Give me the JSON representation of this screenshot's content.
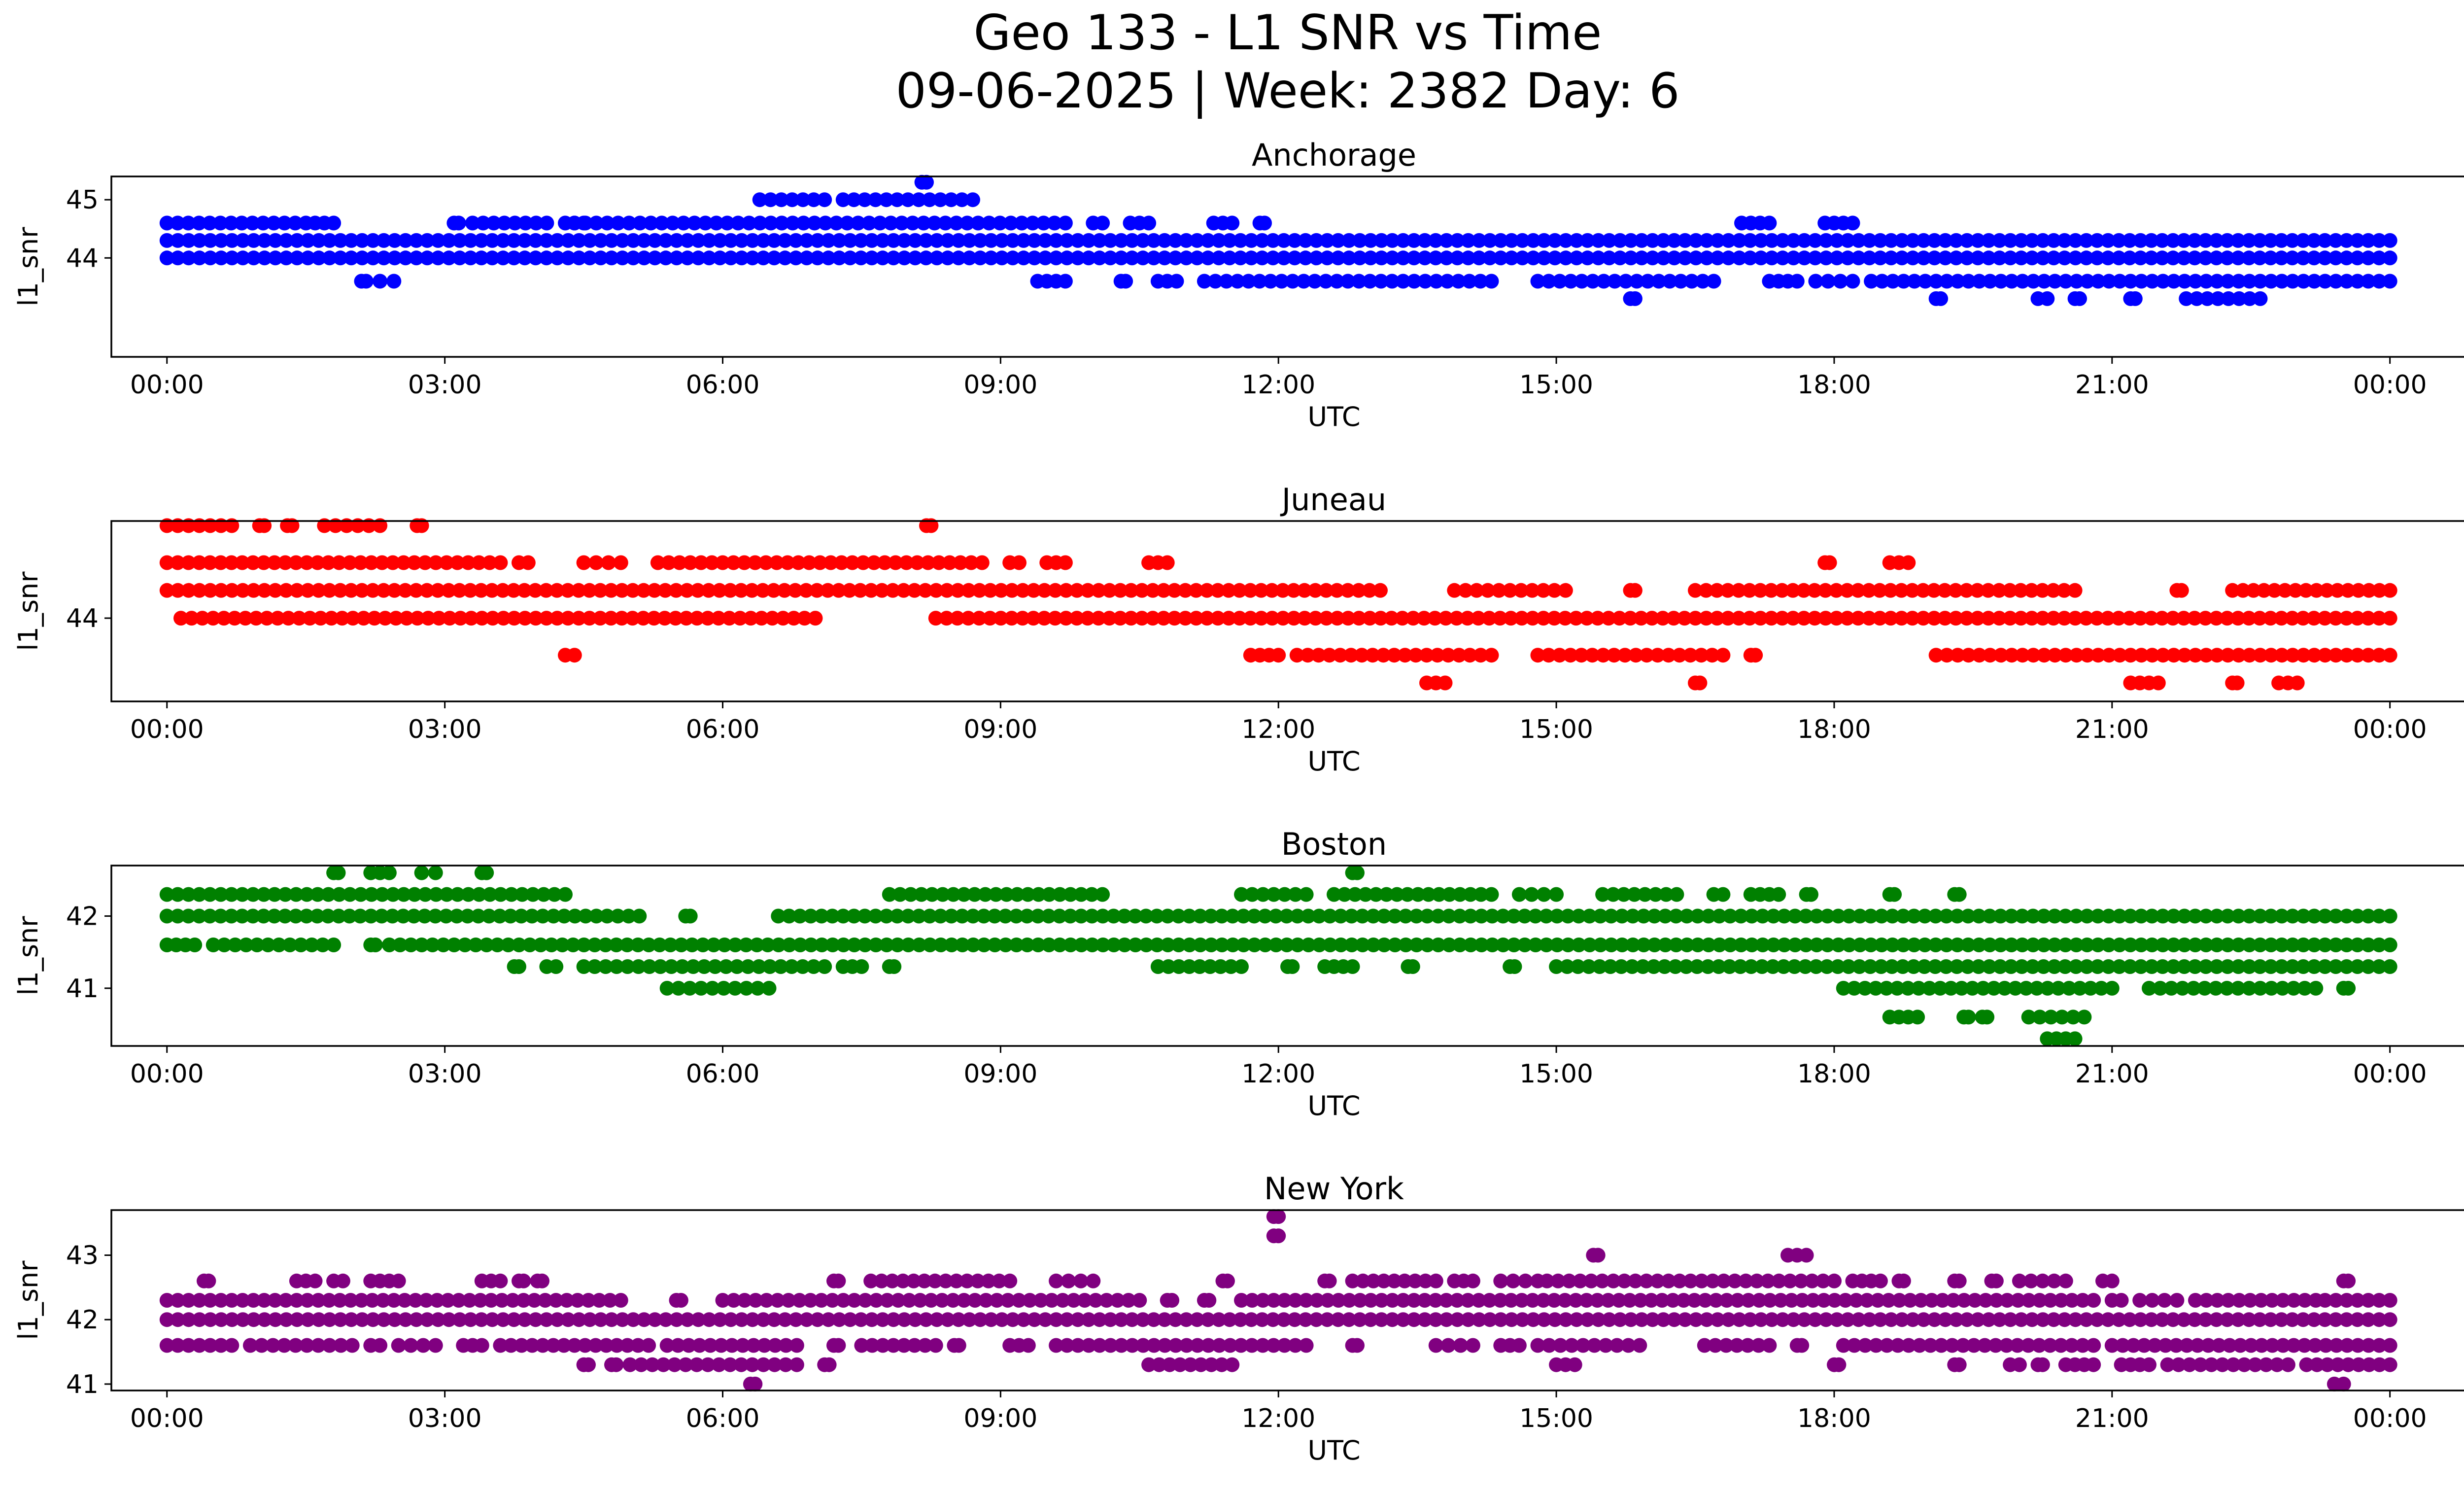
{
  "figure": {
    "title_line1": "Geo 133 - L1 SNR vs Time",
    "title_line2": "09-06-2025 | Week: 2382 Day: 6"
  },
  "chart_data": [
    {
      "type": "scatter",
      "title": "Anchorage",
      "xlabel": "UTC",
      "ylabel": "l1_snr",
      "color": "#0000ff",
      "xlim_hours": [
        -0.6,
        25.8
      ],
      "ylim": [
        42.3,
        45.4
      ],
      "xticks_hours": [
        0,
        3,
        6,
        9,
        12,
        15,
        18,
        21,
        24
      ],
      "xtick_labels": [
        "00:00",
        "03:00",
        "06:00",
        "09:00",
        "12:00",
        "15:00",
        "18:00",
        "21:00",
        "00:00"
      ],
      "yticks": [
        44,
        45
      ],
      "ytick_labels": [
        "44",
        "45"
      ],
      "levels": [
        {
          "y": 44.3,
          "segments": [
            [
              0,
              24
            ]
          ]
        },
        {
          "y": 44.0,
          "segments": [
            [
              0,
              24
            ]
          ]
        },
        {
          "y": 44.6,
          "segments": [
            [
              0,
              1.5
            ],
            [
              1.6,
              1.8
            ],
            [
              3.1,
              3.15
            ],
            [
              3.3,
              4.1
            ],
            [
              4.3,
              4.5
            ],
            [
              4.4,
              9.7
            ],
            [
              10,
              10.1
            ],
            [
              10.4,
              10.6
            ],
            [
              11.3,
              11.5
            ],
            [
              11.8,
              11.85
            ],
            [
              17,
              17.3
            ],
            [
              17.9,
              18.2
            ]
          ]
        },
        {
          "y": 45.0,
          "segments": [
            [
              6.4,
              7.1
            ],
            [
              7.3,
              8.7
            ]
          ]
        },
        {
          "y": 45.3,
          "segments": [
            [
              8.15,
              8.2
            ]
          ]
        },
        {
          "y": 43.6,
          "segments": [
            [
              2.1,
              2.15
            ],
            [
              2.3,
              2.45
            ],
            [
              9.4,
              9.7
            ],
            [
              10.3,
              10.35
            ],
            [
              10.7,
              10.9
            ],
            [
              11.2,
              14.3
            ],
            [
              14.8,
              16.7
            ],
            [
              17.3,
              17.6
            ],
            [
              17.8,
              18.2
            ],
            [
              18.4,
              24
            ]
          ]
        },
        {
          "y": 43.3,
          "segments": [
            [
              15.8,
              15.85
            ],
            [
              19.1,
              19.15
            ],
            [
              20.2,
              20.3
            ],
            [
              20.6,
              20.65
            ],
            [
              21.2,
              21.25
            ],
            [
              21.8,
              22.6
            ]
          ]
        }
      ]
    },
    {
      "type": "scatter",
      "title": "Juneau",
      "xlabel": "UTC",
      "ylabel": "l1_snr",
      "color": "#ff0000",
      "xlim_hours": [
        -0.6,
        25.8
      ],
      "ylim": [
        43.1,
        45.05
      ],
      "xticks_hours": [
        0,
        3,
        6,
        9,
        12,
        15,
        18,
        21,
        24
      ],
      "xtick_labels": [
        "00:00",
        "03:00",
        "06:00",
        "09:00",
        "12:00",
        "15:00",
        "18:00",
        "21:00",
        "00:00"
      ],
      "yticks": [
        44
      ],
      "ytick_labels": [
        "44"
      ],
      "levels": [
        {
          "y": 44.3,
          "segments": [
            [
              0,
              13.1
            ],
            [
              13.9,
              15.1
            ],
            [
              15.8,
              15.85
            ],
            [
              16.5,
              20.6
            ],
            [
              21.7,
              21.75
            ],
            [
              22.3,
              24
            ]
          ]
        },
        {
          "y": 44.0,
          "segments": [
            [
              0.15,
              7.0
            ],
            [
              8.3,
              24
            ]
          ]
        },
        {
          "y": 44.6,
          "segments": [
            [
              0,
              3.6
            ],
            [
              3.8,
              3.9
            ],
            [
              4.5,
              4.9
            ],
            [
              5.3,
              8.8
            ],
            [
              9.1,
              9.2
            ],
            [
              9.5,
              9.7
            ],
            [
              10.6,
              10.8
            ],
            [
              17.9,
              17.95
            ],
            [
              18.6,
              18.8
            ]
          ]
        },
        {
          "y": 45.0,
          "segments": [
            [
              0,
              0.7
            ],
            [
              1.0,
              1.05
            ],
            [
              1.3,
              1.35
            ],
            [
              1.7,
              2.3
            ],
            [
              2.7,
              2.75
            ],
            [
              8.2,
              8.25
            ]
          ]
        },
        {
          "y": 43.6,
          "segments": [
            [
              4.3,
              4.4
            ],
            [
              11.7,
              12.0
            ],
            [
              12.2,
              14.3
            ],
            [
              14.8,
              16.8
            ],
            [
              17.1,
              17.15
            ],
            [
              19.1,
              24
            ]
          ]
        },
        {
          "y": 43.3,
          "segments": [
            [
              13.6,
              13.8
            ],
            [
              16.5,
              16.55
            ],
            [
              21.2,
              21.5
            ],
            [
              22.3,
              22.35
            ],
            [
              22.8,
              23.0
            ]
          ]
        }
      ]
    },
    {
      "type": "scatter",
      "title": "Boston",
      "xlabel": "UTC",
      "ylabel": "l1_snr",
      "color": "#008000",
      "xlim_hours": [
        -0.6,
        25.8
      ],
      "ylim": [
        40.2,
        42.7
      ],
      "xticks_hours": [
        0,
        3,
        6,
        9,
        12,
        15,
        18,
        21,
        24
      ],
      "xtick_labels": [
        "00:00",
        "03:00",
        "06:00",
        "09:00",
        "12:00",
        "15:00",
        "18:00",
        "21:00",
        "00:00"
      ],
      "yticks": [
        41,
        42
      ],
      "ytick_labels": [
        "41",
        "42"
      ],
      "levels": [
        {
          "y": 42.3,
          "segments": [
            [
              0,
              4.3
            ],
            [
              7.8,
              10.1
            ],
            [
              11.6,
              12.3
            ],
            [
              12.6,
              14.3
            ],
            [
              14.6,
              15.0
            ],
            [
              15.5,
              16.3
            ],
            [
              16.7,
              16.8
            ],
            [
              17.1,
              17.4
            ],
            [
              17.7,
              17.75
            ],
            [
              18.6,
              18.65
            ],
            [
              19.3,
              19.35
            ]
          ]
        },
        {
          "y": 42.0,
          "segments": [
            [
              0,
              5.1
            ],
            [
              5.6,
              5.65
            ],
            [
              6.6,
              24
            ]
          ]
        },
        {
          "y": 41.6,
          "segments": [
            [
              0,
              0.3
            ],
            [
              0.5,
              1.8
            ],
            [
              2.2,
              2.25
            ],
            [
              2.4,
              24
            ]
          ]
        },
        {
          "y": 41.3,
          "segments": [
            [
              3.75,
              3.8
            ],
            [
              4.1,
              4.2
            ],
            [
              4.5,
              7.1
            ],
            [
              7.3,
              7.5
            ],
            [
              7.8,
              7.85
            ],
            [
              10.7,
              11.6
            ],
            [
              12.1,
              12.15
            ],
            [
              12.5,
              12.8
            ],
            [
              13.4,
              13.45
            ],
            [
              14.5,
              14.55
            ],
            [
              15.0,
              24
            ]
          ]
        },
        {
          "y": 41.0,
          "segments": [
            [
              5.4,
              6.5
            ],
            [
              18.1,
              21.0
            ],
            [
              21.4,
              23.2
            ],
            [
              23.5,
              23.55
            ]
          ]
        },
        {
          "y": 40.6,
          "segments": [
            [
              18.6,
              18.9
            ],
            [
              19.4,
              19.45
            ],
            [
              19.6,
              19.65
            ],
            [
              20.1,
              20.7
            ]
          ]
        },
        {
          "y": 42.6,
          "segments": [
            [
              1.8,
              1.85
            ],
            [
              2.2,
              2.4
            ],
            [
              2.75,
              2.9
            ],
            [
              3.4,
              3.45
            ],
            [
              12.8,
              12.85
            ]
          ]
        },
        {
          "y": 40.3,
          "segments": [
            [
              20.3,
              20.6
            ]
          ]
        }
      ]
    },
    {
      "type": "scatter",
      "title": "New York",
      "xlabel": "UTC",
      "ylabel": "l1_snr",
      "color": "#800080",
      "xlim_hours": [
        -0.6,
        25.8
      ],
      "ylim": [
        40.9,
        43.7
      ],
      "xticks_hours": [
        0,
        3,
        6,
        9,
        12,
        15,
        18,
        21,
        24
      ],
      "xtick_labels": [
        "00:00",
        "03:00",
        "06:00",
        "09:00",
        "12:00",
        "15:00",
        "18:00",
        "21:00",
        "00:00"
      ],
      "yticks": [
        41,
        42,
        43
      ],
      "ytick_labels": [
        "41",
        "42",
        "43"
      ],
      "levels": [
        {
          "y": 42.3,
          "segments": [
            [
              0,
              4.9
            ],
            [
              5.5,
              5.55
            ],
            [
              6.0,
              10.5
            ],
            [
              10.8,
              10.85
            ],
            [
              11.2,
              11.25
            ],
            [
              11.6,
              20.8
            ],
            [
              21.0,
              21.1
            ],
            [
              21.3,
              21.7
            ],
            [
              21.9,
              23.2
            ],
            [
              23.3,
              24
            ]
          ]
        },
        {
          "y": 42.0,
          "segments": [
            [
              0,
              24
            ]
          ]
        },
        {
          "y": 41.6,
          "segments": [
            [
              0,
              0.7
            ],
            [
              0.9,
              2.0
            ],
            [
              2.2,
              2.3
            ],
            [
              2.5,
              2.9
            ],
            [
              3.2,
              3.4
            ],
            [
              3.6,
              5.2
            ],
            [
              5.4,
              6.8
            ],
            [
              7.2,
              7.25
            ],
            [
              7.5,
              8.3
            ],
            [
              8.5,
              8.55
            ],
            [
              9.1,
              9.3
            ],
            [
              9.6,
              12.3
            ],
            [
              12.8,
              12.85
            ],
            [
              13.7,
              14.1
            ],
            [
              14.4,
              14.6
            ],
            [
              14.8,
              15.9
            ],
            [
              16.6,
              17.3
            ],
            [
              17.6,
              17.65
            ],
            [
              18.1,
              20.8
            ],
            [
              21.0,
              24
            ]
          ]
        },
        {
          "y": 41.3,
          "segments": [
            [
              4.5,
              4.55
            ],
            [
              4.8,
              4.85
            ],
            [
              5.0,
              6.8
            ],
            [
              7.1,
              7.15
            ],
            [
              10.6,
              11.5
            ],
            [
              15.0,
              15.2
            ],
            [
              18.0,
              18.05
            ],
            [
              19.3,
              19.35
            ],
            [
              19.9,
              20.0
            ],
            [
              20.2,
              20.25
            ],
            [
              20.5,
              20.8
            ],
            [
              21.1,
              21.4
            ],
            [
              21.6,
              22.9
            ],
            [
              23.1,
              24
            ]
          ]
        },
        {
          "y": 42.6,
          "segments": [
            [
              0.4,
              0.45
            ],
            [
              1.4,
              1.6
            ],
            [
              1.8,
              1.9
            ],
            [
              2.2,
              2.5
            ],
            [
              3.4,
              3.6
            ],
            [
              3.8,
              3.85
            ],
            [
              4.0,
              4.05
            ],
            [
              7.2,
              7.25
            ],
            [
              7.6,
              9.1
            ],
            [
              9.6,
              10.0
            ],
            [
              11.4,
              11.45
            ],
            [
              12.5,
              12.55
            ],
            [
              12.8,
              13.7
            ],
            [
              13.9,
              14.1
            ],
            [
              14.4,
              14.8
            ],
            [
              14.9,
              18.0
            ],
            [
              18.2,
              18.5
            ],
            [
              18.7,
              18.75
            ],
            [
              19.3,
              19.35
            ],
            [
              19.7,
              19.75
            ],
            [
              20.0,
              20.5
            ],
            [
              20.9,
              21.0
            ]
          ]
        },
        {
          "y": 43.0,
          "segments": [
            [
              15.4,
              15.45
            ],
            [
              17.5,
              17.7
            ]
          ]
        },
        {
          "y": 41.0,
          "segments": [
            [
              6.3,
              6.35
            ],
            [
              23.4,
              23.5
            ]
          ]
        },
        {
          "y": 43.3,
          "segments": [
            [
              11.95,
              12.0
            ]
          ]
        },
        {
          "y": 43.6,
          "segments": [
            [
              11.95,
              12.0
            ]
          ]
        },
        {
          "y": 42.6,
          "segments": [
            [
              23.5,
              23.55
            ]
          ]
        }
      ]
    }
  ]
}
